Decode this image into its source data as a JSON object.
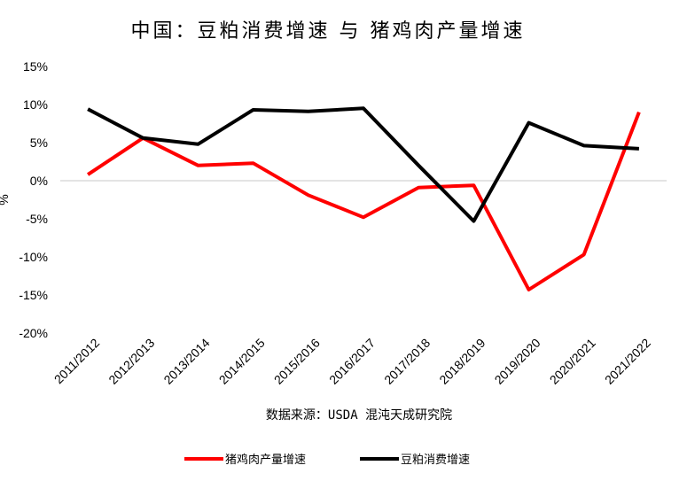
{
  "chart_data": {
    "type": "line",
    "title": "中国：豆粕消费增速 与 猪鸡肉产量增速",
    "ylabel": "%",
    "source": "数据来源：USDA 混沌天成研究院",
    "categories": [
      "2011/2012",
      "2012/2013",
      "2013/2014",
      "2014/2015",
      "2015/2016",
      "2016/2017",
      "2017/2018",
      "2018/2019",
      "2019/2020",
      "2020/2021",
      "2021/2022"
    ],
    "y_ticks": [
      "15%",
      "10%",
      "5%",
      "0%",
      "-5%",
      "-10%",
      "-15%",
      "-20%"
    ],
    "ylim": [
      -20,
      15
    ],
    "grid": false,
    "legend_position": "bottom",
    "series": [
      {
        "name": "猪鸡肉产量增速",
        "color": "#ff0000",
        "values": [
          0.8,
          5.6,
          2.0,
          2.3,
          -1.9,
          -4.8,
          -0.9,
          -0.6,
          -14.3,
          -9.7,
          9.0
        ]
      },
      {
        "name": "豆粕消费增速",
        "color": "#000000",
        "values": [
          9.4,
          5.6,
          4.8,
          9.3,
          9.1,
          9.5,
          2.0,
          -5.3,
          7.6,
          4.6,
          4.2
        ]
      }
    ]
  }
}
